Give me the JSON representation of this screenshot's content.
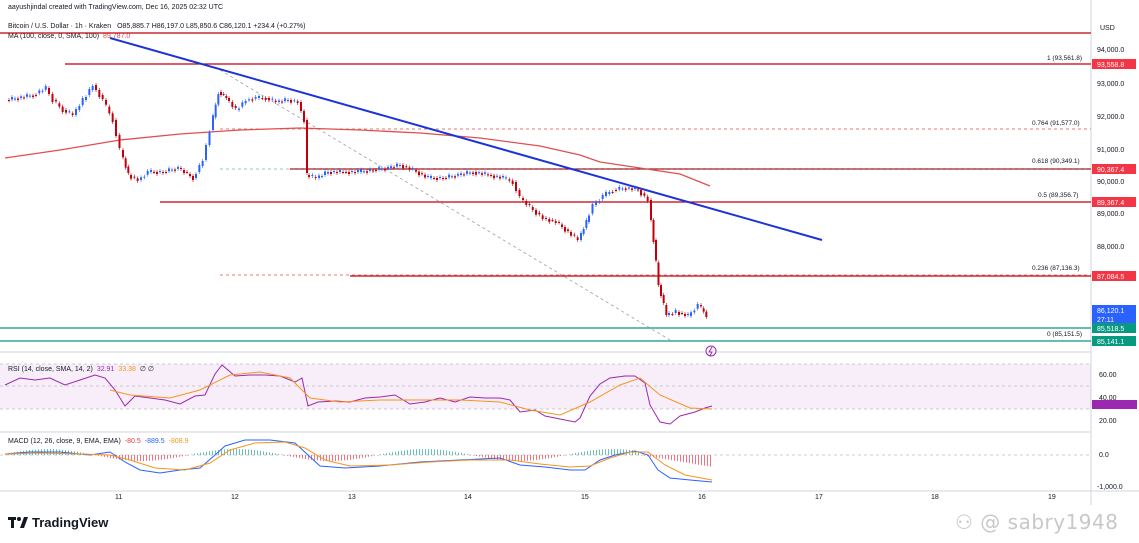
{
  "header": {
    "author_line": "aayushjindal created with TradingView.com, Dec 16, 2025 02:32 UTC",
    "symbol": "Bitcoin / U.S. Dollar · 1h · Kraken",
    "ohlc": "O85,885.7  H86,197.0  L85,850.6  C86,120.1  +234.4 (+0.27%)",
    "ma_label": "MA (100, close, 0, SMA, 100)",
    "ma_value": "89,787.0",
    "currency": "USD"
  },
  "price_axis": {
    "ticks": [
      "94,000.0",
      "93,000.0",
      "92,000.0",
      "91,000.0",
      "90,000.0",
      "89,000.0",
      "88,000.0"
    ],
    "tags": [
      {
        "label": "93,558.8",
        "color": "#f23645"
      },
      {
        "label": "90,367.4",
        "color": "#f23645"
      },
      {
        "label": "89,367.4",
        "color": "#f23645"
      },
      {
        "label": "87,084.5",
        "color": "#f23645"
      },
      {
        "label": "86,120.1",
        "color": "#2962ff"
      },
      {
        "label": "27:11",
        "color": "#2962ff"
      },
      {
        "label": "85,518.5",
        "color": "#089981"
      },
      {
        "label": "85,141.1",
        "color": "#089981"
      }
    ]
  },
  "fib_labels": [
    "1 (93,561.8)",
    "0.764 (91,577.0)",
    "0.618 (90,349.1)",
    "0.5 (89,356.7)",
    "0.236 (87,136.3)",
    "0 (85,151.5)"
  ],
  "time_axis": [
    "11",
    "12",
    "13",
    "14",
    "15",
    "16",
    "17",
    "18",
    "19"
  ],
  "rsi": {
    "label": "RSI (14, close, SMA, 14, 2)",
    "value": "32.91",
    "ma_value": "33.38",
    "extra": "∅  ∅",
    "ticks": [
      "60.00",
      "40.00",
      "20.00"
    ]
  },
  "macd": {
    "label": "MACD (12, 26, close, 9, EMA, EMA)",
    "hist": "-80.5",
    "macd": "-889.5",
    "signal": "-808.9",
    "ticks": [
      "0.0",
      "-1,000.0"
    ]
  },
  "branding": {
    "logo_text": "TradingView",
    "watermark": "sabry1948"
  },
  "colors": {
    "up": "#2962ff",
    "down": "#c2000b",
    "ma": "#e04f4f",
    "trendline": "#1c33d8",
    "rsi": "#9c27b0",
    "macd": "#2962ff",
    "signal": "#f7941d"
  }
}
